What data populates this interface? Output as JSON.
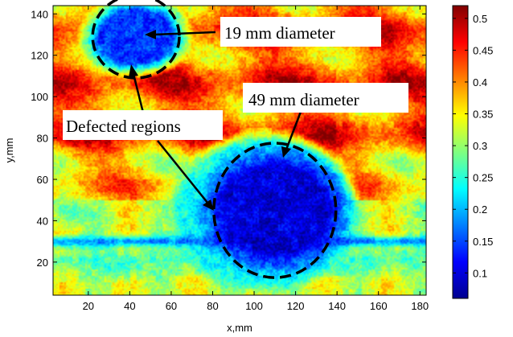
{
  "chart_data": {
    "type": "heatmap",
    "title": "",
    "xlabel": "x,mm",
    "ylabel": "y,mm",
    "xlim": [
      3,
      183
    ],
    "ylim": [
      4,
      144
    ],
    "xticks": [
      20,
      40,
      60,
      80,
      100,
      120,
      140,
      160,
      180
    ],
    "yticks": [
      20,
      40,
      60,
      80,
      100,
      120,
      140
    ],
    "colorbar": {
      "range": [
        0.06,
        0.52
      ],
      "ticks": [
        0.1,
        0.15,
        0.2,
        0.25,
        0.3,
        0.35,
        0.4,
        0.45,
        0.5
      ],
      "tick_labels": [
        "0.1",
        "0.15",
        "0.2",
        "0.25",
        "0.3",
        "0.35",
        "0.4",
        "0.45",
        "0.5"
      ],
      "colormap": "jet"
    },
    "background_level": 0.42,
    "features": [
      {
        "kind": "spot",
        "cx": 43,
        "cy": 129,
        "rx": 22,
        "ry": 16,
        "min": 0.14
      },
      {
        "kind": "band-upper",
        "y_from": 30,
        "y_to": 78,
        "x_from": 60,
        "x_to": 140,
        "level": 0.24
      },
      {
        "kind": "spot",
        "cx": 110,
        "cy": 45,
        "rx": 31,
        "ry": 26,
        "min": 0.1
      },
      {
        "kind": "strip",
        "y": 30,
        "half_width": 2.5,
        "level": 0.15
      },
      {
        "kind": "band-lower",
        "y_from": 10,
        "y_to": 32,
        "level": 0.25
      }
    ],
    "defects": [
      {
        "label": "19 mm diameter",
        "cx": 43,
        "cy": 129,
        "diameter": 19
      },
      {
        "label": "49 mm diameter",
        "cx": 110,
        "cy": 47,
        "diameter": 49
      }
    ],
    "annotations": [
      {
        "text": "19 mm diameter"
      },
      {
        "text": "49 mm diameter"
      },
      {
        "text": "Defected regions"
      }
    ]
  }
}
